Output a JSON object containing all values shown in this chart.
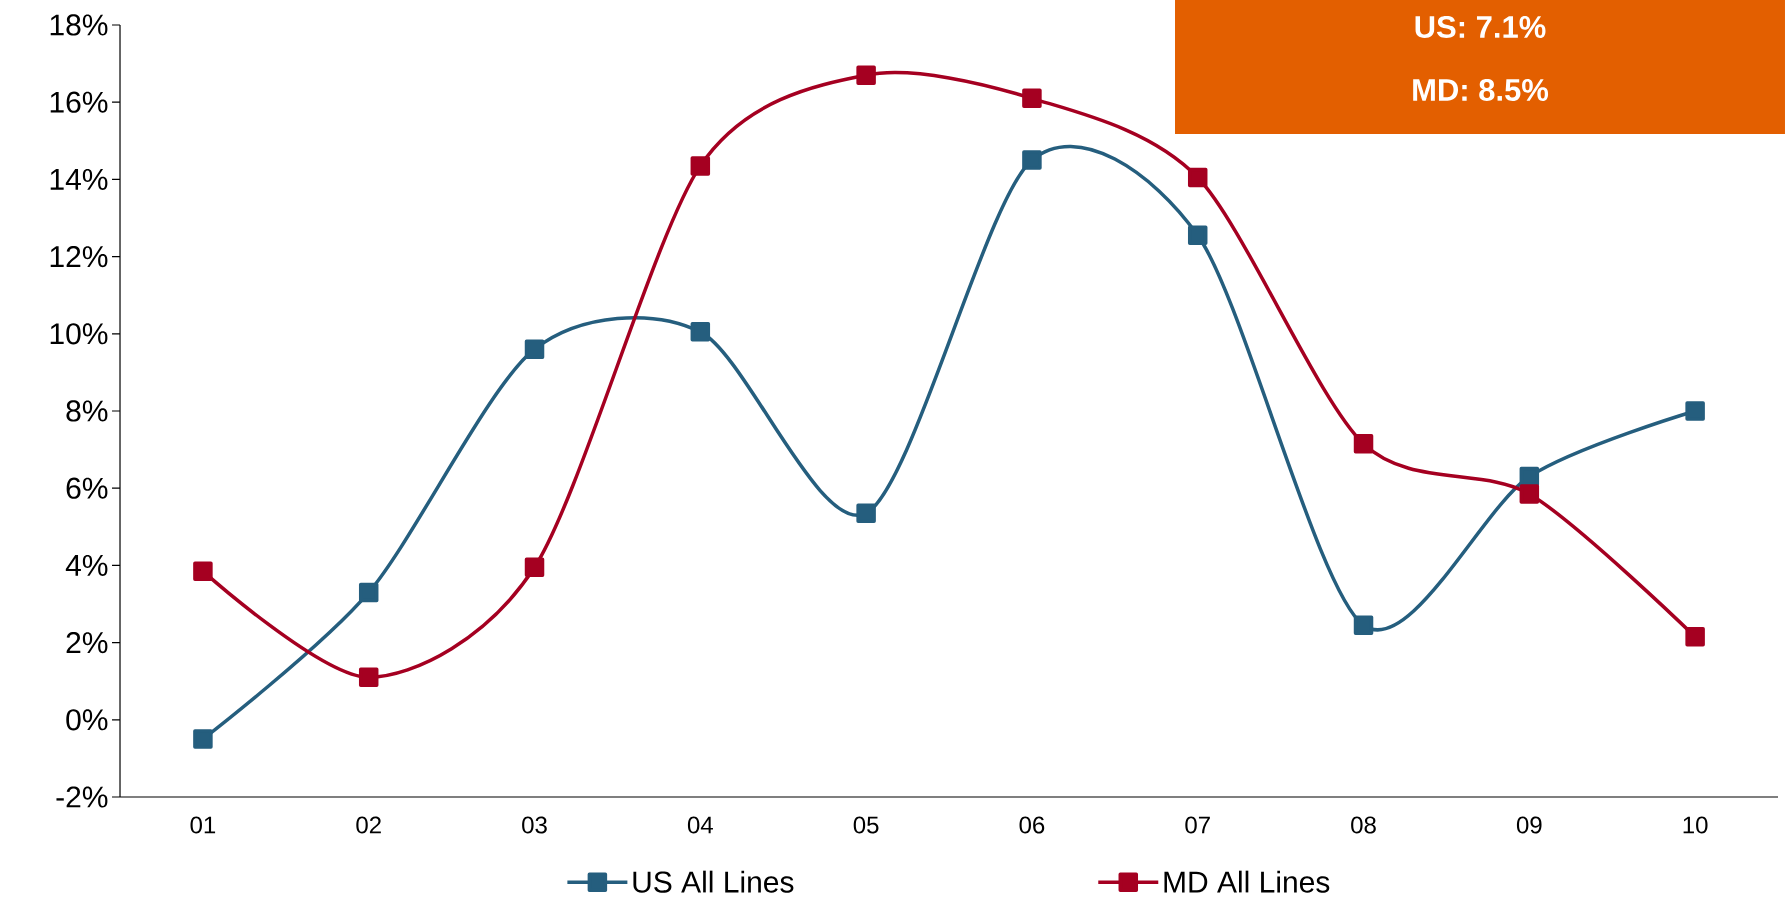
{
  "chart_data": {
    "type": "line",
    "categories": [
      "01",
      "02",
      "03",
      "04",
      "05",
      "06",
      "07",
      "08",
      "09",
      "10"
    ],
    "series": [
      {
        "name": "US All Lines",
        "color": "#255e7e",
        "values": [
          -0.5,
          3.3,
          9.6,
          10.05,
          5.35,
          14.5,
          12.55,
          2.45,
          6.3,
          8.0
        ]
      },
      {
        "name": "MD All Lines",
        "color": "#a50021",
        "values": [
          3.85,
          1.1,
          3.95,
          14.35,
          16.7,
          16.1,
          14.05,
          7.15,
          5.85,
          2.15
        ]
      }
    ],
    "ylim": [
      -2,
      18
    ],
    "yticks": [
      {
        "value": -2,
        "label": "-2%"
      },
      {
        "value": 0,
        "label": "0%"
      },
      {
        "value": 2,
        "label": "2%"
      },
      {
        "value": 4,
        "label": "4%"
      },
      {
        "value": 6,
        "label": "6%"
      },
      {
        "value": 8,
        "label": "8%"
      },
      {
        "value": 10,
        "label": "10%"
      },
      {
        "value": 12,
        "label": "12%"
      },
      {
        "value": 14,
        "label": "14%"
      },
      {
        "value": 16,
        "label": "16%"
      },
      {
        "value": 18,
        "label": "18%"
      }
    ],
    "legend": "bottom",
    "marker": "square",
    "line_style": "solid",
    "grid": false,
    "annotations": [
      "US: 7.1%",
      "MD: 8.5%"
    ]
  }
}
